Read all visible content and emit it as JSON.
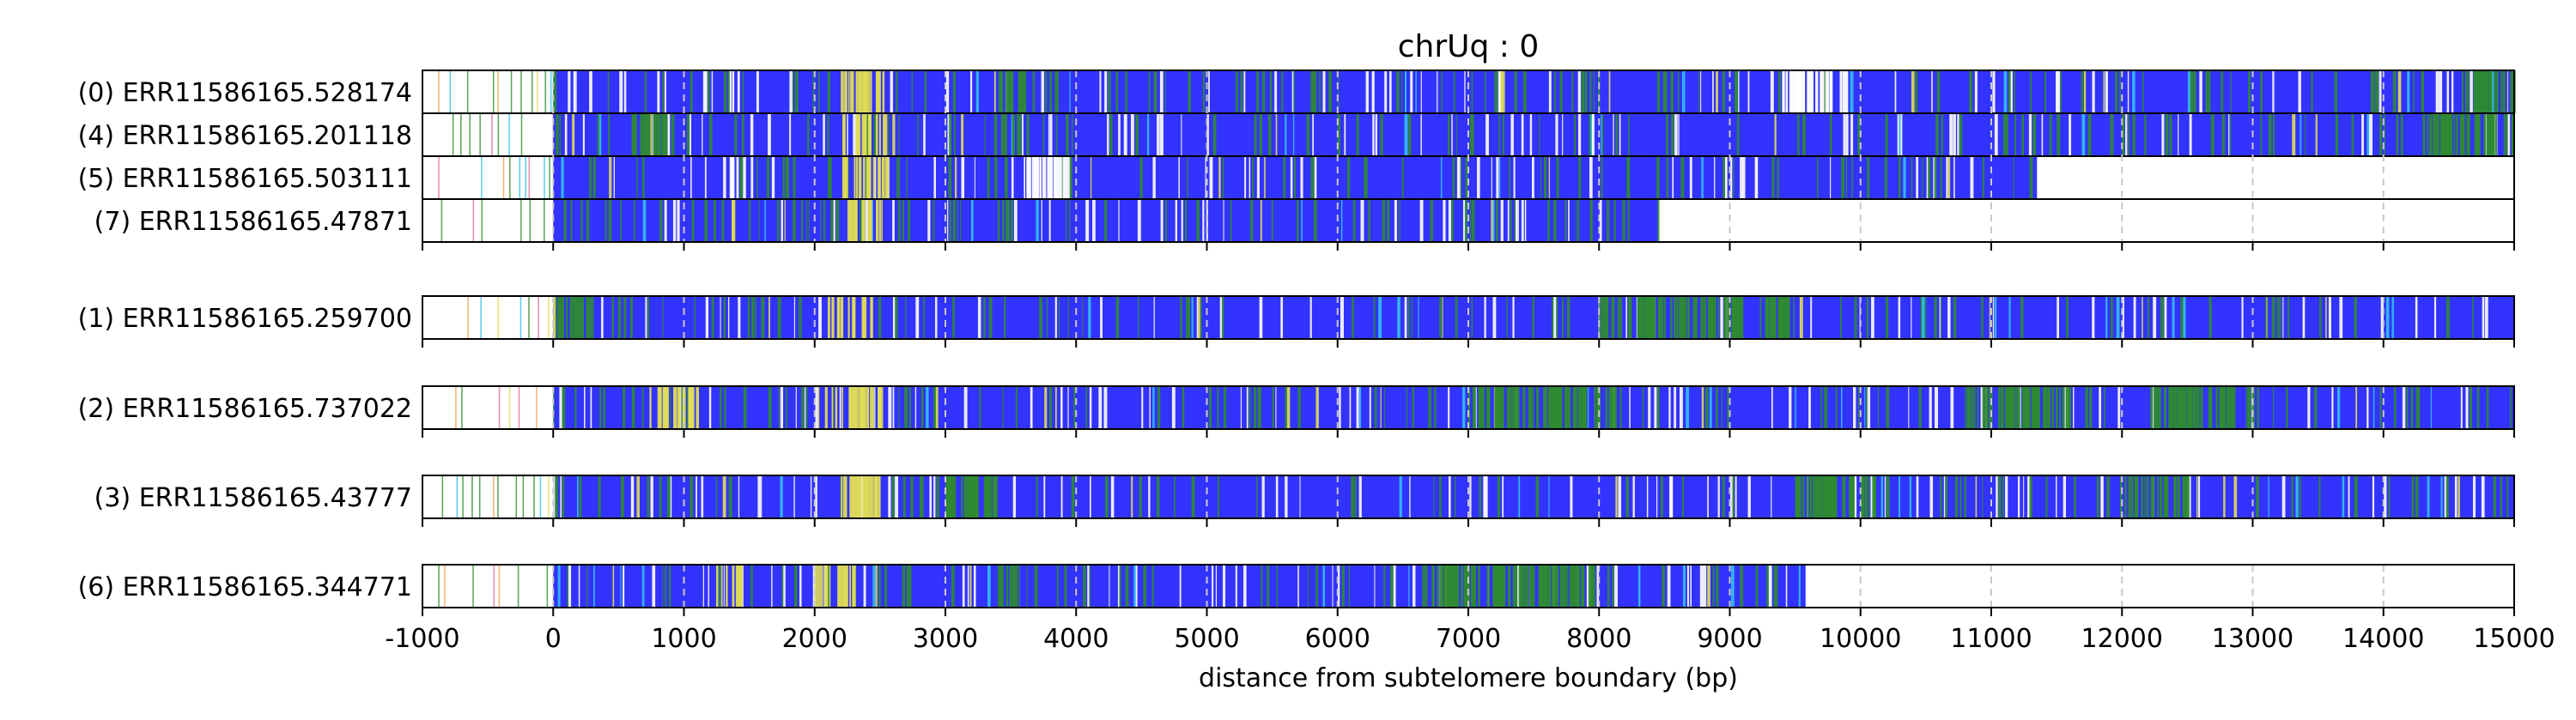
{
  "chart_data": {
    "type": "heatmap",
    "title": "chrUq : 0",
    "xlabel": "distance from subtelomere boundary (bp)",
    "xlim": [
      -1000,
      15000
    ],
    "xticks": [
      -1000,
      0,
      1000,
      2000,
      3000,
      4000,
      5000,
      6000,
      7000,
      8000,
      9000,
      10000,
      11000,
      12000,
      13000,
      14000,
      15000
    ],
    "grid": true,
    "colors": {
      "main": "#3333ff",
      "green": "#2e8b2e",
      "yellow": "#e0dd55",
      "white": "#ffffff",
      "cyan": "#33c0ee",
      "orange": "#f0a050",
      "pink": "#e07090",
      "grid": "#c8c8c8"
    },
    "groups": [
      {
        "tracks": [
          {
            "label": "(0) ERR11586165.528174",
            "start": -1000,
            "end": 15000,
            "dense_start": 0,
            "features": [
              {
                "range": [
                  2200,
                  2550
                ],
                "color": "yellow"
              },
              {
                "range": [
                  1350,
                  1450
                ],
                "color": "white"
              },
              {
                "range": [
                  9400,
                  9900
                ],
                "color": "white"
              },
              {
                "range": [
                  3400,
                  3600
                ],
                "color": "green"
              },
              {
                "range": [
                  14600,
                  15000
                ],
                "color": "green"
              }
            ]
          },
          {
            "label": "(4) ERR11586165.201118",
            "start": -1000,
            "end": 15000,
            "dense_start": 0,
            "features": [
              {
                "range": [
                  2200,
                  2550
                ],
                "color": "yellow"
              },
              {
                "range": [
                  600,
                  900
                ],
                "color": "green"
              },
              {
                "range": [
                  14300,
                  15000
                ],
                "color": "green"
              },
              {
                "range": [
                  3450,
                  3550
                ],
                "color": "green"
              }
            ]
          },
          {
            "label": "(5) ERR11586165.503111",
            "start": -1000,
            "end": 11350,
            "dense_start": 0,
            "features": [
              {
                "range": [
                  2200,
                  2550
                ],
                "color": "yellow"
              },
              {
                "range": [
                  3600,
                  3900
                ],
                "color": "white"
              },
              {
                "range": [
                  1350,
                  1450
                ],
                "color": "white"
              }
            ]
          },
          {
            "label": "(7) ERR11586165.47871",
            "start": -1000,
            "end": 8450,
            "dense_start": 0,
            "features": [
              {
                "range": [
                  2200,
                  2550
                ],
                "color": "yellow"
              },
              {
                "range": [
                  1350,
                  1400
                ],
                "color": "yellow"
              },
              {
                "range": [
                  3400,
                  3500
                ],
                "color": "green"
              }
            ]
          }
        ]
      },
      {
        "tracks": [
          {
            "label": "(1) ERR11586165.259700",
            "start": -1000,
            "end": 15000,
            "dense_start": 0,
            "features": [
              {
                "range": [
                  2100,
                  2450
                ],
                "color": "yellow"
              },
              {
                "range": [
                  8000,
                  9500
                ],
                "color": "green"
              },
              {
                "range": [
                  0,
                  300
                ],
                "color": "green"
              }
            ]
          }
        ]
      },
      {
        "tracks": [
          {
            "label": "(2) ERR11586165.737022",
            "start": -1000,
            "end": 15000,
            "dense_start": 0,
            "features": [
              {
                "range": [
                  700,
                  1100
                ],
                "color": "yellow"
              },
              {
                "range": [
                  2000,
                  2500
                ],
                "color": "yellow"
              },
              {
                "range": [
                  7000,
                  8200
                ],
                "color": "green"
              },
              {
                "range": [
                  10800,
                  11600
                ],
                "color": "green"
              },
              {
                "range": [
                  12200,
                  13000
                ],
                "color": "green"
              }
            ]
          }
        ]
      },
      {
        "tracks": [
          {
            "label": "(3) ERR11586165.43777",
            "start": -1000,
            "end": 15000,
            "dense_start": 0,
            "features": [
              {
                "range": [
                  2200,
                  2500
                ],
                "color": "yellow"
              },
              {
                "range": [
                  3000,
                  3400
                ],
                "color": "green"
              },
              {
                "range": [
                  9500,
                  10200
                ],
                "color": "green"
              },
              {
                "range": [
                  12000,
                  12500
                ],
                "color": "green"
              }
            ]
          }
        ]
      },
      {
        "tracks": [
          {
            "label": "(6) ERR11586165.344771",
            "start": -1000,
            "end": 9580,
            "dense_start": 0,
            "features": [
              {
                "range": [
                  1200,
                  1500
                ],
                "color": "yellow"
              },
              {
                "range": [
                  2000,
                  2300
                ],
                "color": "yellow"
              },
              {
                "range": [
                  3400,
                  3600
                ],
                "color": "green"
              },
              {
                "range": [
                  6600,
                  8000
                ],
                "color": "green"
              }
            ]
          }
        ]
      }
    ]
  }
}
